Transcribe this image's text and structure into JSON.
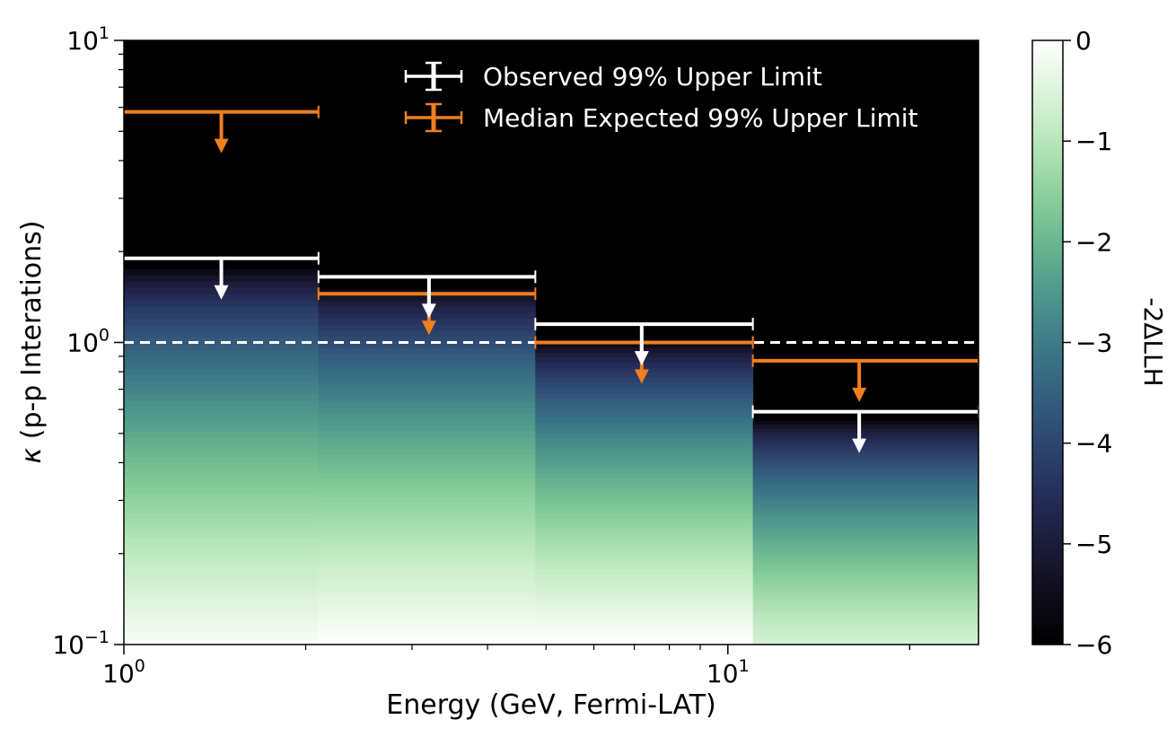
{
  "chart_data": {
    "type": "heatmap",
    "xlabel": "Energy (GeV, Fermi-LAT)",
    "ylabel_symbol": "κ",
    "ylabel_text": " (p-p Interations)",
    "x_scale": "log",
    "y_scale": "log",
    "xlim": [
      1.0,
      26.0
    ],
    "ylim": [
      0.1,
      10.0
    ],
    "x_ticks": [
      {
        "value": 1,
        "base": "10",
        "exp": "0"
      },
      {
        "value": 10,
        "base": "10",
        "exp": "1"
      }
    ],
    "y_ticks": [
      {
        "value": 0.1,
        "base": "10",
        "exp": "−1"
      },
      {
        "value": 1,
        "base": "10",
        "exp": "0"
      },
      {
        "value": 10,
        "base": "10",
        "exp": "1"
      }
    ],
    "bins": [
      {
        "x_low": 1.0,
        "x_high": 2.1,
        "x_center": 1.45,
        "observed_ul": 1.9,
        "expected_ul": 5.8,
        "map_top": 1.75,
        "map_bottom_value": -0.1
      },
      {
        "x_low": 2.1,
        "x_high": 4.8,
        "x_center": 3.2,
        "observed_ul": 1.65,
        "expected_ul": 1.45,
        "map_top": 1.5,
        "map_bottom_value": 0.0
      },
      {
        "x_low": 4.8,
        "x_high": 11.0,
        "x_center": 7.2,
        "observed_ul": 1.15,
        "expected_ul": 1.0,
        "map_top": 1.0,
        "map_bottom_value": 0.0
      },
      {
        "x_low": 11.0,
        "x_high": 26.0,
        "x_center": 16.5,
        "observed_ul": 0.59,
        "expected_ul": 0.87,
        "map_top": 0.55,
        "map_bottom_value": -0.6
      }
    ],
    "reference_line": {
      "y": 1.0,
      "style": "dashed",
      "color": "#ffffff"
    },
    "series": [
      {
        "name": "Observed 99% Upper Limit",
        "color": "#ffffff"
      },
      {
        "name": "Median Expected 99% Upper Limit",
        "color": "#f07f1e"
      }
    ],
    "legend_position": "top-center",
    "colorbar": {
      "label": "-2ΔLLH",
      "range": [
        -6,
        0
      ],
      "ticks": [
        "0",
        "−1",
        "−2",
        "−3",
        "−4",
        "−5",
        "−6"
      ],
      "colormap": "cubehelix-green"
    },
    "background_color": "#000000"
  }
}
